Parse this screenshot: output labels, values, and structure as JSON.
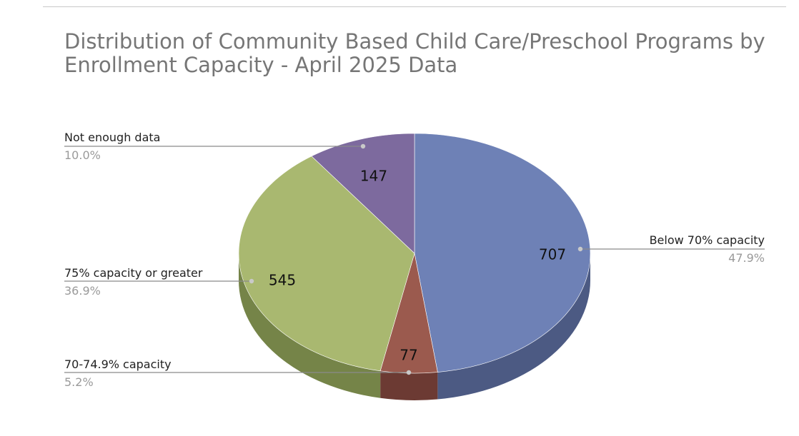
{
  "chart_data": {
    "type": "pie",
    "title_lines": [
      "Distribution of Community Based Child Care/Preschool Programs by",
      "Enrollment Capacity - April 2025 Data"
    ],
    "three_d": true,
    "slices": [
      {
        "label": "Below 70% capacity",
        "value": 707,
        "value_label": "707",
        "percent_label": "47.9%",
        "color": "#6e81b6",
        "side_color": "#4c5a83"
      },
      {
        "label": "70-74.9% capacity",
        "value": 77,
        "value_label": "77",
        "percent_label": "5.2%",
        "color": "#9b5a4e",
        "side_color": "#6c3a33"
      },
      {
        "label": "75% capacity or greater",
        "value": 545,
        "value_label": "545",
        "percent_label": "36.9%",
        "color": "#a9b870",
        "side_color": "#758448"
      },
      {
        "label": "Not enough data",
        "value": 147,
        "value_label": "147",
        "percent_label": "10.0%",
        "color": "#7d6a9e",
        "side_color": "#57496f"
      }
    ]
  }
}
